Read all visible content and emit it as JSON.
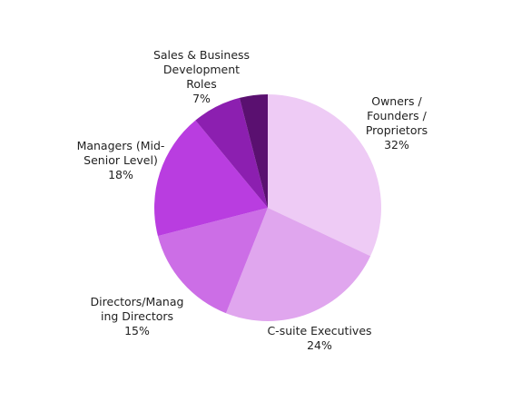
{
  "chart_data": {
    "type": "pie",
    "categories": [
      "Owners / Founders / Proprietors",
      "C-suite Executives",
      "Directors/Managing Directors",
      "Managers (Mid-Senior Level)",
      "Sales & Business Development Roles",
      null
    ],
    "values": [
      32,
      24,
      15,
      18,
      7,
      4
    ],
    "value_labels": [
      "32%",
      "24%",
      "15%",
      "18%",
      "7%",
      null
    ],
    "colors": [
      "#eecbf5",
      "#e0a6ee",
      "#cc6ee6",
      "#b93de0",
      "#8c1fb0",
      "#5a1070"
    ]
  }
}
